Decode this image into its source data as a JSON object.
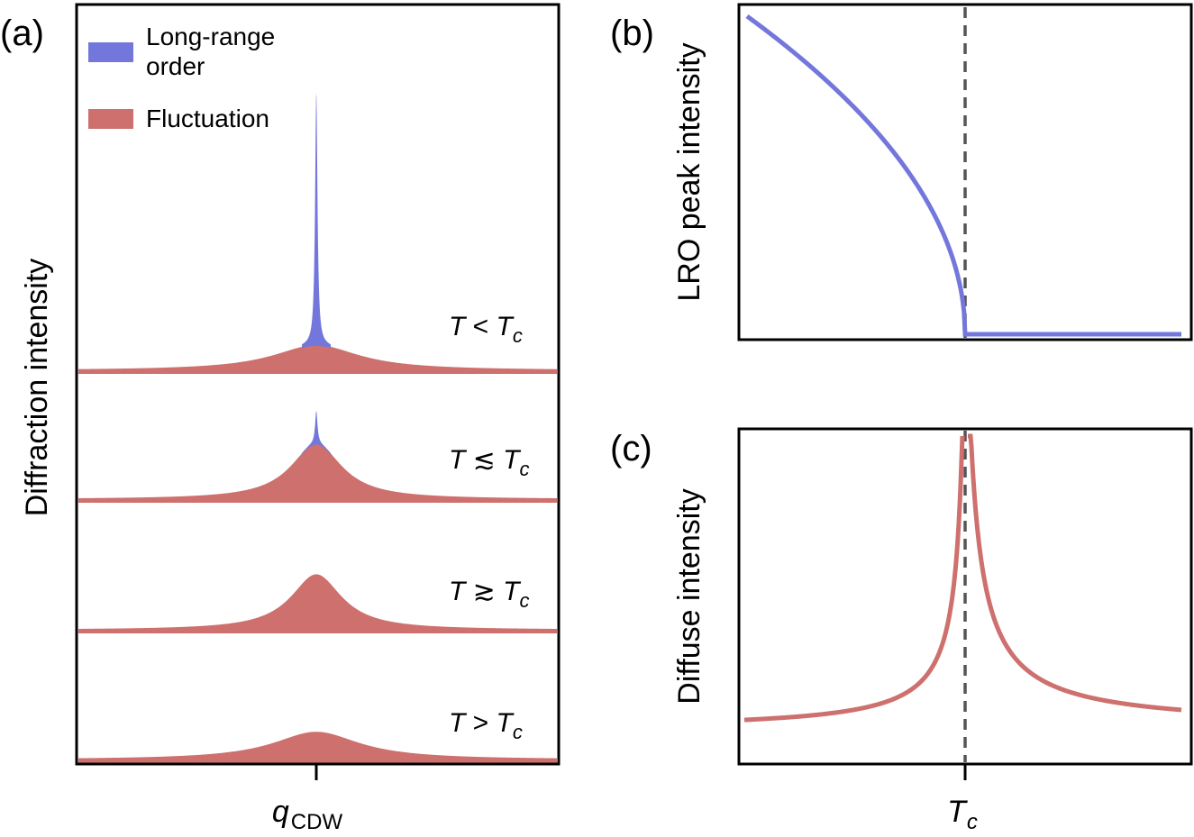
{
  "colors": {
    "lro": "#7377dc",
    "fluctuation": "#cd706e",
    "dashed": "#555555",
    "axis": "#000000"
  },
  "chart_data": [
    {
      "panel": "(a)",
      "type": "area",
      "ylabel": "Diffraction intensity",
      "xlabel_main": "q",
      "xlabel_sub": "CDW",
      "legend": [
        {
          "label_line1": "Long-range",
          "label_line2": "order",
          "color": "#7377dc"
        },
        {
          "label_line1": "Fluctuation",
          "label_line2": "",
          "color": "#cd706e"
        }
      ],
      "legend_position": "top-left",
      "x_range": [
        -1,
        1
      ],
      "traces": [
        {
          "label_main": "T",
          "relation": "<",
          "label_sub_main": "T",
          "label_sub": "c",
          "fluct_amplitude": 1.0,
          "fluct_width": 0.22,
          "lro_amplitude": 10.0,
          "lro_width": 0.006
        },
        {
          "label_main": "T",
          "relation": "≲",
          "label_sub_main": "T",
          "label_sub": "c",
          "fluct_amplitude": 2.2,
          "fluct_width": 0.13,
          "lro_amplitude": 1.3,
          "lro_width": 0.006
        },
        {
          "label_main": "T",
          "relation": "≳",
          "label_sub_main": "T",
          "label_sub": "c",
          "fluct_amplitude": 2.2,
          "fluct_width": 0.13,
          "lro_amplitude": 0,
          "lro_width": 0.006
        },
        {
          "label_main": "T",
          "relation": ">",
          "label_sub_main": "T",
          "label_sub": "c",
          "fluct_amplitude": 1.1,
          "fluct_width": 0.22,
          "lro_amplitude": 0,
          "lro_width": 0.006
        }
      ]
    },
    {
      "panel": "(b)",
      "type": "line",
      "ylabel": "LRO peak intensity",
      "series": [
        {
          "color": "#7377dc",
          "x_start": 0,
          "x_critical": 1,
          "x_end": 2,
          "y_max": 1.0,
          "exponent": 0.5
        }
      ]
    },
    {
      "panel": "(c)",
      "type": "line",
      "ylabel": "Diffuse intensity",
      "xlabel_main": "T",
      "xlabel_sub": "c",
      "series": [
        {
          "color": "#cd706e",
          "x_start": 0,
          "x_critical": 1,
          "x_end": 2
        }
      ]
    }
  ]
}
